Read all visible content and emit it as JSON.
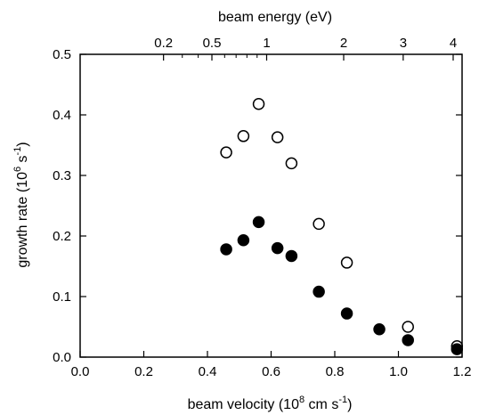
{
  "chart_data": {
    "type": "scatter",
    "xlabel": {
      "pre": "beam velocity (10",
      "sup": "8",
      "mid": " cm s",
      "sup2": "-1",
      "post": ")"
    },
    "ylabel": {
      "pre": "growth rate (10",
      "sup": "6",
      "mid": " s",
      "sup2": "-1",
      "post": ")"
    },
    "top_label": "beam energy (eV)",
    "xlim": [
      0,
      1.2
    ],
    "ylim": [
      0,
      0.5
    ],
    "x_ticks": [
      0.0,
      0.2,
      0.4,
      0.6,
      0.8,
      1.0,
      1.2
    ],
    "x_tick_labels": [
      "0.0",
      "0.2",
      "0.4",
      "0.6",
      "0.8",
      "1.0",
      "1.2"
    ],
    "y_ticks": [
      0,
      0.1,
      0.2,
      0.3,
      0.4,
      0.5
    ],
    "y_tick_labels": [
      "0.0",
      "0.1",
      "0.2",
      "0.3",
      "0.4",
      "0.5"
    ],
    "top_ticks": [
      {
        "label": "0.2",
        "x": 0.262
      },
      {
        "label": "0.5",
        "x": 0.414
      },
      {
        "label": "1",
        "x": 0.586
      },
      {
        "label": "2",
        "x": 0.828
      },
      {
        "label": "3",
        "x": 1.015
      },
      {
        "label": "4",
        "x": 1.172
      }
    ],
    "top_minor_ticks": [
      0.321,
      0.371,
      0.454,
      0.49,
      0.524,
      0.556
    ],
    "grid": false,
    "series": [
      {
        "marker": "open-circle",
        "color": "#000000",
        "points": [
          [
            0.459,
            0.338
          ],
          [
            0.513,
            0.365
          ],
          [
            0.561,
            0.418
          ],
          [
            0.62,
            0.363
          ],
          [
            0.664,
            0.32
          ],
          [
            0.75,
            0.22
          ],
          [
            0.838,
            0.156
          ],
          [
            1.03,
            0.05
          ],
          [
            1.184,
            0.018
          ]
        ]
      },
      {
        "marker": "filled-circle",
        "color": "#000000",
        "points": [
          [
            0.459,
            0.178
          ],
          [
            0.513,
            0.193
          ],
          [
            0.561,
            0.223
          ],
          [
            0.62,
            0.18
          ],
          [
            0.664,
            0.167
          ],
          [
            0.75,
            0.108
          ],
          [
            0.838,
            0.072
          ],
          [
            0.94,
            0.046
          ],
          [
            1.03,
            0.028
          ],
          [
            1.184,
            0.013
          ]
        ]
      }
    ]
  }
}
